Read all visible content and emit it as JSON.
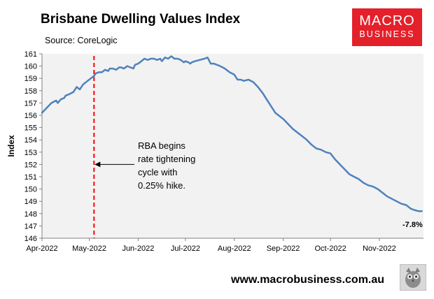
{
  "header": {
    "title": "Brisbane Dwelling Values Index",
    "source": "Source: CoreLogic"
  },
  "logo": {
    "line1": "MACRO",
    "line2": "BUSINESS"
  },
  "footer": {
    "website": "www.macrobusiness.com.au",
    "mascot_icon": "owl-icon"
  },
  "colors": {
    "line": "#4f81bd",
    "marker": "#ff0000",
    "plot_bg": "#f2f2f2",
    "logo_bg": "#e4202a"
  },
  "chart_data": {
    "type": "line",
    "title": "Brisbane Dwelling Values Index",
    "xlabel": "",
    "ylabel": "Index",
    "ylim": [
      146,
      161
    ],
    "yticks": [
      146,
      147,
      148,
      149,
      150,
      151,
      152,
      153,
      154,
      155,
      156,
      157,
      158,
      159,
      160,
      161
    ],
    "xlim": [
      0,
      242
    ],
    "xticks": [
      {
        "label": "Apr-2022",
        "day": 0
      },
      {
        "label": "May-2022",
        "day": 30
      },
      {
        "label": "Jun-2022",
        "day": 61
      },
      {
        "label": "Jul-2022",
        "day": 91
      },
      {
        "label": "Aug-2022",
        "day": 122
      },
      {
        "label": "Sep-2022",
        "day": 153
      },
      {
        "label": "Oct-2022",
        "day": 183
      },
      {
        "label": "Nov-2022",
        "day": 214
      }
    ],
    "grid": false,
    "series": [
      {
        "name": "Brisbane Dwelling Values Index",
        "x": [
          0,
          3,
          6,
          9,
          10,
          12,
          14,
          15,
          17,
          20,
          22,
          24,
          26,
          27,
          29,
          31,
          33,
          34,
          36,
          38,
          40,
          42,
          43,
          45,
          47,
          49,
          50,
          52,
          54,
          56,
          58,
          59,
          61,
          63,
          65,
          67,
          69,
          71,
          73,
          75,
          76,
          78,
          80,
          82,
          84,
          86,
          88,
          90,
          91,
          93,
          94,
          95,
          97,
          100,
          103,
          105,
          107,
          109,
          111,
          113,
          116,
          119,
          122,
          124,
          126,
          128,
          131,
          134,
          137,
          140,
          143,
          146,
          148,
          150,
          153,
          156,
          159,
          162,
          165,
          168,
          171,
          174,
          177,
          180,
          183,
          186,
          189,
          192,
          195,
          198,
          201,
          204,
          207,
          210,
          213,
          216,
          219,
          222,
          225,
          228,
          231,
          234,
          236,
          239,
          241
        ],
        "y": [
          156.2,
          156.6,
          157.0,
          157.2,
          157.0,
          157.3,
          157.4,
          157.6,
          157.7,
          157.9,
          158.3,
          158.1,
          158.5,
          158.6,
          158.8,
          159.0,
          159.2,
          159.4,
          159.5,
          159.5,
          159.7,
          159.6,
          159.8,
          159.8,
          159.7,
          159.9,
          159.9,
          159.8,
          160.0,
          159.9,
          159.8,
          160.1,
          160.2,
          160.4,
          160.6,
          160.5,
          160.6,
          160.6,
          160.5,
          160.6,
          160.4,
          160.7,
          160.6,
          160.8,
          160.6,
          160.6,
          160.5,
          160.3,
          160.4,
          160.3,
          160.2,
          160.3,
          160.4,
          160.5,
          160.6,
          160.7,
          160.2,
          160.2,
          160.1,
          160.0,
          159.8,
          159.5,
          159.3,
          158.9,
          158.9,
          158.8,
          158.9,
          158.7,
          158.3,
          157.8,
          157.2,
          156.6,
          156.2,
          156.0,
          155.7,
          155.3,
          154.9,
          154.6,
          154.3,
          154.0,
          153.6,
          153.3,
          153.2,
          153.0,
          152.9,
          152.4,
          152.0,
          151.6,
          151.2,
          151.0,
          150.8,
          150.5,
          150.3,
          150.2,
          150.0,
          149.7,
          149.4,
          149.2,
          149.0,
          148.8,
          148.7,
          148.4,
          148.3,
          148.2,
          148.2
        ]
      }
    ],
    "annotations": [
      {
        "type": "vline",
        "day": 33,
        "label_lines": [
          "RBA begins",
          "rate tightening",
          "cycle with",
          "0.25% hike."
        ],
        "arrow_to_value": 152
      },
      {
        "type": "end-label",
        "text": "-7.8%"
      }
    ]
  }
}
